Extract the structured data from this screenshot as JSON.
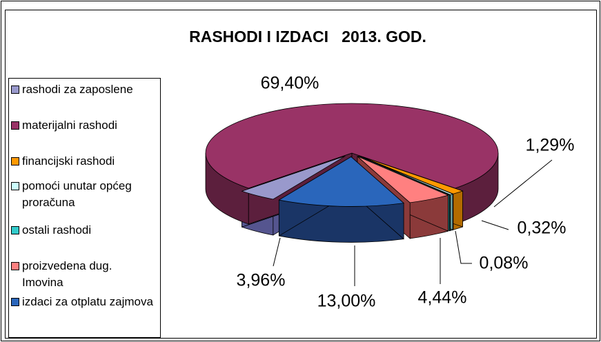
{
  "chart_data": {
    "type": "pie3d",
    "title": "RASHODI I IZDACI   2013. GOD.",
    "categories": [
      "rashodi za zaposlene",
      "materijalni rashodi",
      "financijski rashodi",
      "pomoći unutar općeg proračuna",
      "ostali rashodi",
      "proizvedena dug. Imovina",
      "izdaci za otplatu zajmova"
    ],
    "values": [
      3.96,
      69.4,
      1.29,
      0.32,
      0.08,
      4.44,
      13.0
    ],
    "value_labels": [
      "3,96%",
      "69,40%",
      "1,29%",
      "0,32%",
      "0,08%",
      "4,44%",
      "13,00%"
    ],
    "colors": [
      "#9999cc",
      "#993366",
      "#ff9900",
      "#ccffff",
      "#33cccc",
      "#ff8080",
      "#2a66bb"
    ],
    "side_colors": [
      "#55558f",
      "#5c1f3d",
      "#b36b00",
      "#669999",
      "#1f7a7a",
      "#8b3a3a",
      "#1a3566"
    ],
    "legend": "left"
  }
}
